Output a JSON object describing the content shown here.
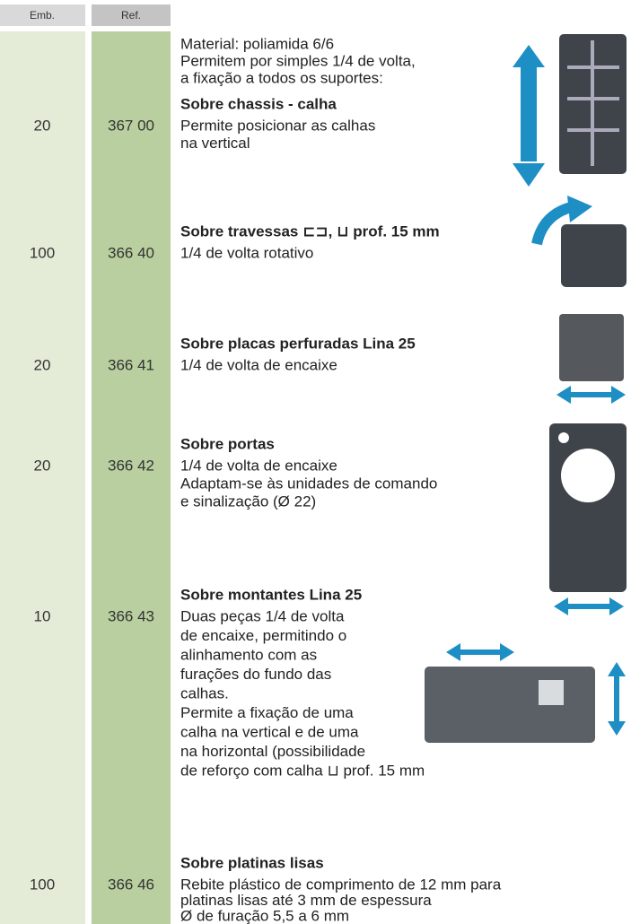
{
  "header": {
    "emb": "Emb.",
    "ref": "Ref."
  },
  "intro": [
    "Material: poliamida 6/6",
    "Permitem por simples 1/4 de volta,",
    "a fixação a todos os suportes:"
  ],
  "items": [
    {
      "emb": "20",
      "ref": "367 00",
      "title": "Sobre chassis - calha",
      "lines": [
        "Permite posicionar as calhas",
        "na vertical"
      ]
    },
    {
      "emb": "100",
      "ref": "366 40",
      "title": "Sobre travessas ⊏⊐, ⊔ prof. 15 mm",
      "lines": [
        "1/4 de volta rotativo"
      ]
    },
    {
      "emb": "20",
      "ref": "366 41",
      "title": "Sobre placas perfuradas Lina 25",
      "lines": [
        "1/4 de volta de encaixe"
      ]
    },
    {
      "emb": "20",
      "ref": "366 42",
      "title": "Sobre portas",
      "lines": [
        "1/4 de volta de encaixe",
        "Adaptam-se às unidades de comando",
        "e sinalização (Ø 22)"
      ]
    },
    {
      "emb": "10",
      "ref": "366 43",
      "title": "Sobre montantes Lina 25",
      "lines": [
        "Duas peças 1/4 de volta",
        "de encaixe, permitindo o",
        "alinhamento com as",
        "furações do fundo das",
        "calhas.",
        "Permite a fixação de uma",
        "calha na vertical e de uma",
        "na horizontal (possibilidade",
        "de reforço com calha ⊔ prof. 15 mm"
      ]
    },
    {
      "emb": "100",
      "ref": "366 46",
      "title": "Sobre platinas lisas",
      "lines": [
        "Rebite plástico de comprimento de 12 mm para",
        "platinas lisas até 3 mm de espessura",
        "Ø de furação 5,5 a 6 mm"
      ]
    }
  ]
}
